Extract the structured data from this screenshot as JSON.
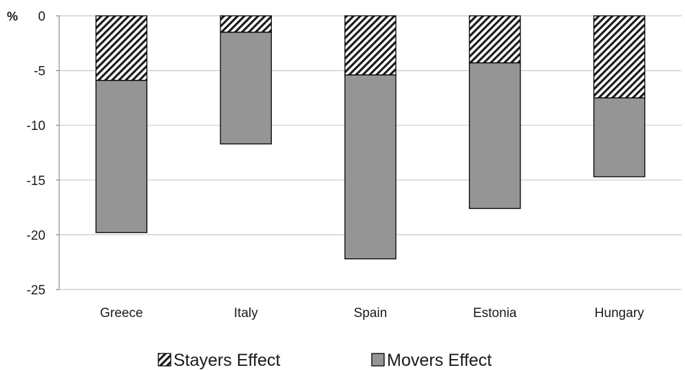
{
  "chart_data": {
    "type": "bar",
    "stacked": true,
    "categories": [
      "Greece",
      "Italy",
      "Spain",
      "Estonia",
      "Hungary"
    ],
    "series": [
      {
        "name": "Stayers Effect",
        "values": [
          -5.9,
          -1.5,
          -5.4,
          -4.3,
          -7.5
        ],
        "pattern": "diagonal-hatch",
        "color": "#1a1a1a"
      },
      {
        "name": "Movers Effect",
        "values": [
          -13.9,
          -10.2,
          -16.8,
          -13.3,
          -7.2
        ],
        "pattern": "solid",
        "color": "#959595"
      }
    ],
    "yticks": [
      "0",
      "-5",
      "-10",
      "-15",
      "-20",
      "-25"
    ],
    "ytick_values": [
      0,
      -5,
      -10,
      -15,
      -20,
      -25
    ],
    "ylim": [
      -25,
      0
    ],
    "ylabel": "%",
    "xlabel": "",
    "title": "",
    "grid": true,
    "legend_position": "bottom"
  }
}
